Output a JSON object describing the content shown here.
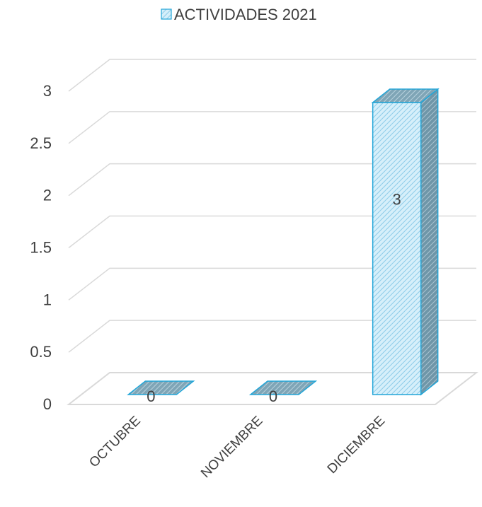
{
  "chart_data": {
    "type": "bar",
    "title": "",
    "categories": [
      "OCTUBRE",
      "NOVIEMBRE",
      "DICIEMBRE"
    ],
    "series": [
      {
        "name": "ACTIVIDADES 2021",
        "values": [
          0,
          0,
          3
        ]
      }
    ],
    "ylim": [
      0,
      3
    ],
    "yticks": [
      "0",
      "0.5",
      "1",
      "1.5",
      "2",
      "2.5",
      "3"
    ],
    "grid": true,
    "legend_position": "top",
    "three_d": true,
    "data_labels": [
      "0",
      "0",
      "3"
    ],
    "colors": {
      "bar_front": "#d6effa",
      "bar_stripe": "#8ccbe8",
      "bar_edge": "#23a6d8",
      "bar_side": "#6f96a8",
      "bar_side_stripe": "#a9c4d1",
      "grid": "#d9d9d9",
      "text": "#404040"
    }
  }
}
